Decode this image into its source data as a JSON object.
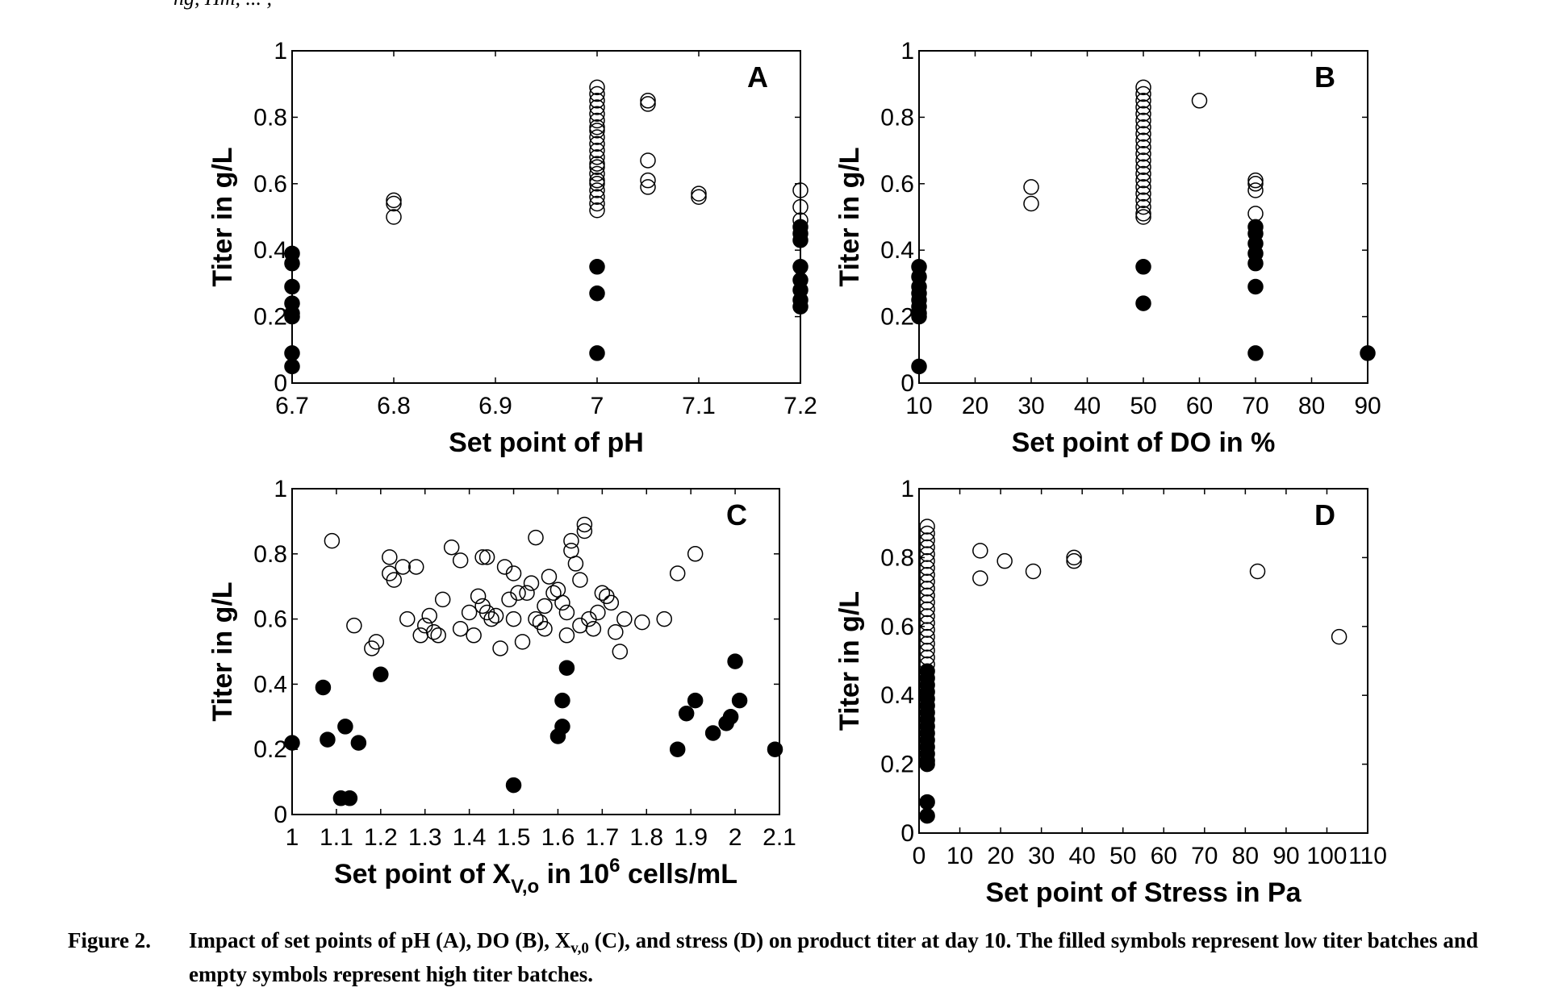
{
  "top_fragment": "ng, Hm, ... ,",
  "caption": {
    "label": "Figure 2.",
    "text_before_sub": "Impact of set points of pH (A), DO (B), X",
    "sub": "v,0",
    "text_after_sub": " (C), and stress (D) on product titer at day 10. The filled symbols represent low titer batches and empty symbols represent high titer batches."
  },
  "chart_data": [
    {
      "type": "scatter",
      "panel": "A",
      "xlabel": "Set point of pH",
      "ylabel": "Titer in g/L",
      "xlim": [
        6.7,
        7.2
      ],
      "ylim": [
        0,
        1
      ],
      "xticks": [
        "6.7",
        "6.8",
        "6.9",
        "7",
        "7.1",
        "7.2"
      ],
      "yticks": [
        "0",
        "0.2",
        "0.4",
        "0.6",
        "0.8",
        "1"
      ],
      "grid": false,
      "legend": "none",
      "series": [
        {
          "marker": "filled-circle",
          "color": "#000000",
          "points": [
            [
              6.7,
              0.39
            ],
            [
              6.7,
              0.36
            ],
            [
              6.7,
              0.29
            ],
            [
              6.7,
              0.24
            ],
            [
              6.7,
              0.21
            ],
            [
              6.7,
              0.2
            ],
            [
              6.7,
              0.09
            ],
            [
              6.7,
              0.05
            ],
            [
              7.0,
              0.35
            ],
            [
              7.0,
              0.27
            ],
            [
              7.0,
              0.09
            ],
            [
              7.2,
              0.47
            ],
            [
              7.2,
              0.45
            ],
            [
              7.2,
              0.43
            ],
            [
              7.2,
              0.35
            ],
            [
              7.2,
              0.31
            ],
            [
              7.2,
              0.28
            ],
            [
              7.2,
              0.25
            ],
            [
              7.2,
              0.23
            ]
          ]
        },
        {
          "marker": "open-circle",
          "color": "#000000",
          "points": [
            [
              6.8,
              0.55
            ],
            [
              6.8,
              0.54
            ],
            [
              6.8,
              0.5
            ],
            [
              7.0,
              0.89
            ],
            [
              7.0,
              0.87
            ],
            [
              7.0,
              0.85
            ],
            [
              7.0,
              0.83
            ],
            [
              7.0,
              0.81
            ],
            [
              7.0,
              0.79
            ],
            [
              7.0,
              0.77
            ],
            [
              7.0,
              0.76
            ],
            [
              7.0,
              0.74
            ],
            [
              7.0,
              0.72
            ],
            [
              7.0,
              0.7
            ],
            [
              7.0,
              0.68
            ],
            [
              7.0,
              0.66
            ],
            [
              7.0,
              0.65
            ],
            [
              7.0,
              0.63
            ],
            [
              7.0,
              0.61
            ],
            [
              7.0,
              0.6
            ],
            [
              7.0,
              0.58
            ],
            [
              7.0,
              0.56
            ],
            [
              7.0,
              0.54
            ],
            [
              7.0,
              0.52
            ],
            [
              7.05,
              0.85
            ],
            [
              7.05,
              0.84
            ],
            [
              7.05,
              0.67
            ],
            [
              7.05,
              0.61
            ],
            [
              7.05,
              0.59
            ],
            [
              7.1,
              0.57
            ],
            [
              7.1,
              0.56
            ],
            [
              7.2,
              0.58
            ],
            [
              7.2,
              0.53
            ],
            [
              7.2,
              0.49
            ]
          ]
        }
      ]
    },
    {
      "type": "scatter",
      "panel": "B",
      "xlabel": "Set point of DO in %",
      "ylabel": "Titer in g/L",
      "xlim": [
        10,
        90
      ],
      "ylim": [
        0,
        1
      ],
      "xticks": [
        "10",
        "20",
        "30",
        "40",
        "50",
        "60",
        "70",
        "80",
        "90"
      ],
      "yticks": [
        "0",
        "0.2",
        "0.4",
        "0.6",
        "0.8",
        "1"
      ],
      "grid": false,
      "legend": "none",
      "series": [
        {
          "marker": "filled-circle",
          "color": "#000000",
          "points": [
            [
              10,
              0.35
            ],
            [
              10,
              0.32
            ],
            [
              10,
              0.29
            ],
            [
              10,
              0.27
            ],
            [
              10,
              0.25
            ],
            [
              10,
              0.23
            ],
            [
              10,
              0.21
            ],
            [
              10,
              0.2
            ],
            [
              10,
              0.05
            ],
            [
              50,
              0.35
            ],
            [
              50,
              0.24
            ],
            [
              70,
              0.47
            ],
            [
              70,
              0.45
            ],
            [
              70,
              0.42
            ],
            [
              70,
              0.39
            ],
            [
              70,
              0.36
            ],
            [
              70,
              0.29
            ],
            [
              70,
              0.09
            ],
            [
              90,
              0.09
            ]
          ]
        },
        {
          "marker": "open-circle",
          "color": "#000000",
          "points": [
            [
              30,
              0.59
            ],
            [
              30,
              0.54
            ],
            [
              50,
              0.89
            ],
            [
              50,
              0.87
            ],
            [
              50,
              0.85
            ],
            [
              50,
              0.83
            ],
            [
              50,
              0.81
            ],
            [
              50,
              0.79
            ],
            [
              50,
              0.77
            ],
            [
              50,
              0.75
            ],
            [
              50,
              0.73
            ],
            [
              50,
              0.71
            ],
            [
              50,
              0.69
            ],
            [
              50,
              0.67
            ],
            [
              50,
              0.65
            ],
            [
              50,
              0.63
            ],
            [
              50,
              0.61
            ],
            [
              50,
              0.59
            ],
            [
              50,
              0.57
            ],
            [
              50,
              0.55
            ],
            [
              50,
              0.53
            ],
            [
              50,
              0.51
            ],
            [
              50,
              0.5
            ],
            [
              60,
              0.85
            ],
            [
              70,
              0.61
            ],
            [
              70,
              0.6
            ],
            [
              70,
              0.58
            ],
            [
              70,
              0.51
            ]
          ]
        }
      ]
    },
    {
      "type": "scatter",
      "panel": "C",
      "xlabel": {
        "text": "Set point of X",
        "sub": "V,o",
        "mid": " in 10",
        "sup": "6",
        "end": " cells/mL"
      },
      "ylabel": "Titer in g/L",
      "xlim": [
        1,
        2.1
      ],
      "ylim": [
        0,
        1
      ],
      "xticks": [
        "1",
        "1.1",
        "1.2",
        "1.3",
        "1.4",
        "1.5",
        "1.6",
        "1.7",
        "1.8",
        "1.9",
        "2",
        "2.1"
      ],
      "yticks": [
        "0",
        "0.2",
        "0.4",
        "0.6",
        "0.8",
        "1"
      ],
      "grid": false,
      "legend": "none",
      "series": [
        {
          "marker": "filled-circle",
          "color": "#000000",
          "points": [
            [
              1.0,
              0.22
            ],
            [
              1.07,
              0.39
            ],
            [
              1.08,
              0.23
            ],
            [
              1.11,
              0.05
            ],
            [
              1.12,
              0.27
            ],
            [
              1.13,
              0.05
            ],
            [
              1.15,
              0.22
            ],
            [
              1.2,
              0.43
            ],
            [
              1.5,
              0.09
            ],
            [
              1.6,
              0.24
            ],
            [
              1.61,
              0.35
            ],
            [
              1.61,
              0.27
            ],
            [
              1.62,
              0.45
            ],
            [
              1.87,
              0.2
            ],
            [
              1.89,
              0.31
            ],
            [
              1.91,
              0.35
            ],
            [
              1.95,
              0.25
            ],
            [
              1.98,
              0.28
            ],
            [
              1.99,
              0.3
            ],
            [
              2.0,
              0.47
            ],
            [
              2.01,
              0.35
            ],
            [
              2.09,
              0.2
            ]
          ]
        },
        {
          "marker": "open-circle",
          "color": "#000000",
          "points": [
            [
              1.09,
              0.84
            ],
            [
              1.14,
              0.58
            ],
            [
              1.18,
              0.51
            ],
            [
              1.19,
              0.53
            ],
            [
              1.22,
              0.79
            ],
            [
              1.22,
              0.74
            ],
            [
              1.23,
              0.72
            ],
            [
              1.25,
              0.76
            ],
            [
              1.26,
              0.6
            ],
            [
              1.28,
              0.76
            ],
            [
              1.29,
              0.55
            ],
            [
              1.3,
              0.58
            ],
            [
              1.31,
              0.61
            ],
            [
              1.32,
              0.56
            ],
            [
              1.33,
              0.55
            ],
            [
              1.34,
              0.66
            ],
            [
              1.36,
              0.82
            ],
            [
              1.38,
              0.78
            ],
            [
              1.38,
              0.57
            ],
            [
              1.4,
              0.62
            ],
            [
              1.41,
              0.55
            ],
            [
              1.42,
              0.67
            ],
            [
              1.43,
              0.79
            ],
            [
              1.43,
              0.64
            ],
            [
              1.44,
              0.79
            ],
            [
              1.44,
              0.62
            ],
            [
              1.45,
              0.6
            ],
            [
              1.46,
              0.61
            ],
            [
              1.47,
              0.51
            ],
            [
              1.48,
              0.76
            ],
            [
              1.49,
              0.66
            ],
            [
              1.5,
              0.74
            ],
            [
              1.5,
              0.6
            ],
            [
              1.51,
              0.68
            ],
            [
              1.52,
              0.53
            ],
            [
              1.53,
              0.68
            ],
            [
              1.54,
              0.71
            ],
            [
              1.55,
              0.85
            ],
            [
              1.55,
              0.6
            ],
            [
              1.56,
              0.59
            ],
            [
              1.57,
              0.64
            ],
            [
              1.57,
              0.57
            ],
            [
              1.58,
              0.73
            ],
            [
              1.59,
              0.68
            ],
            [
              1.6,
              0.69
            ],
            [
              1.61,
              0.65
            ],
            [
              1.62,
              0.62
            ],
            [
              1.62,
              0.55
            ],
            [
              1.63,
              0.84
            ],
            [
              1.63,
              0.81
            ],
            [
              1.64,
              0.77
            ],
            [
              1.65,
              0.72
            ],
            [
              1.65,
              0.58
            ],
            [
              1.66,
              0.89
            ],
            [
              1.66,
              0.87
            ],
            [
              1.67,
              0.6
            ],
            [
              1.68,
              0.57
            ],
            [
              1.69,
              0.62
            ],
            [
              1.7,
              0.68
            ],
            [
              1.71,
              0.67
            ],
            [
              1.72,
              0.65
            ],
            [
              1.73,
              0.56
            ],
            [
              1.74,
              0.5
            ],
            [
              1.75,
              0.6
            ],
            [
              1.79,
              0.59
            ],
            [
              1.84,
              0.6
            ],
            [
              1.87,
              0.74
            ],
            [
              1.91,
              0.8
            ]
          ]
        }
      ]
    },
    {
      "type": "scatter",
      "panel": "D",
      "xlabel": "Set point of Stress in Pa",
      "ylabel": "Titer in g/L",
      "xlim": [
        0,
        110
      ],
      "ylim": [
        0,
        1
      ],
      "xticks": [
        "0",
        "10",
        "20",
        "30",
        "40",
        "50",
        "60",
        "70",
        "80",
        "90",
        "100",
        "110"
      ],
      "yticks": [
        "0",
        "0.2",
        "0.4",
        "0.6",
        "0.8",
        "1"
      ],
      "grid": false,
      "legend": "none",
      "series": [
        {
          "marker": "filled-circle",
          "color": "#000000",
          "points": [
            [
              2,
              0.47
            ],
            [
              2,
              0.45
            ],
            [
              2,
              0.43
            ],
            [
              2,
              0.41
            ],
            [
              2,
              0.39
            ],
            [
              2,
              0.37
            ],
            [
              2,
              0.35
            ],
            [
              2,
              0.33
            ],
            [
              2,
              0.31
            ],
            [
              2,
              0.29
            ],
            [
              2,
              0.27
            ],
            [
              2,
              0.25
            ],
            [
              2,
              0.23
            ],
            [
              2,
              0.21
            ],
            [
              2,
              0.2
            ],
            [
              2,
              0.09
            ],
            [
              2,
              0.05
            ]
          ]
        },
        {
          "marker": "open-circle",
          "color": "#000000",
          "points": [
            [
              2,
              0.89
            ],
            [
              2,
              0.87
            ],
            [
              2,
              0.85
            ],
            [
              2,
              0.83
            ],
            [
              2,
              0.81
            ],
            [
              2,
              0.79
            ],
            [
              2,
              0.77
            ],
            [
              2,
              0.75
            ],
            [
              2,
              0.73
            ],
            [
              2,
              0.71
            ],
            [
              2,
              0.69
            ],
            [
              2,
              0.67
            ],
            [
              2,
              0.65
            ],
            [
              2,
              0.63
            ],
            [
              2,
              0.61
            ],
            [
              2,
              0.59
            ],
            [
              2,
              0.57
            ],
            [
              2,
              0.55
            ],
            [
              2,
              0.53
            ],
            [
              2,
              0.51
            ],
            [
              2,
              0.49
            ],
            [
              15,
              0.82
            ],
            [
              15,
              0.74
            ],
            [
              21,
              0.79
            ],
            [
              28,
              0.76
            ],
            [
              38,
              0.8
            ],
            [
              38,
              0.79
            ],
            [
              83,
              0.76
            ],
            [
              103,
              0.57
            ]
          ]
        }
      ]
    }
  ]
}
